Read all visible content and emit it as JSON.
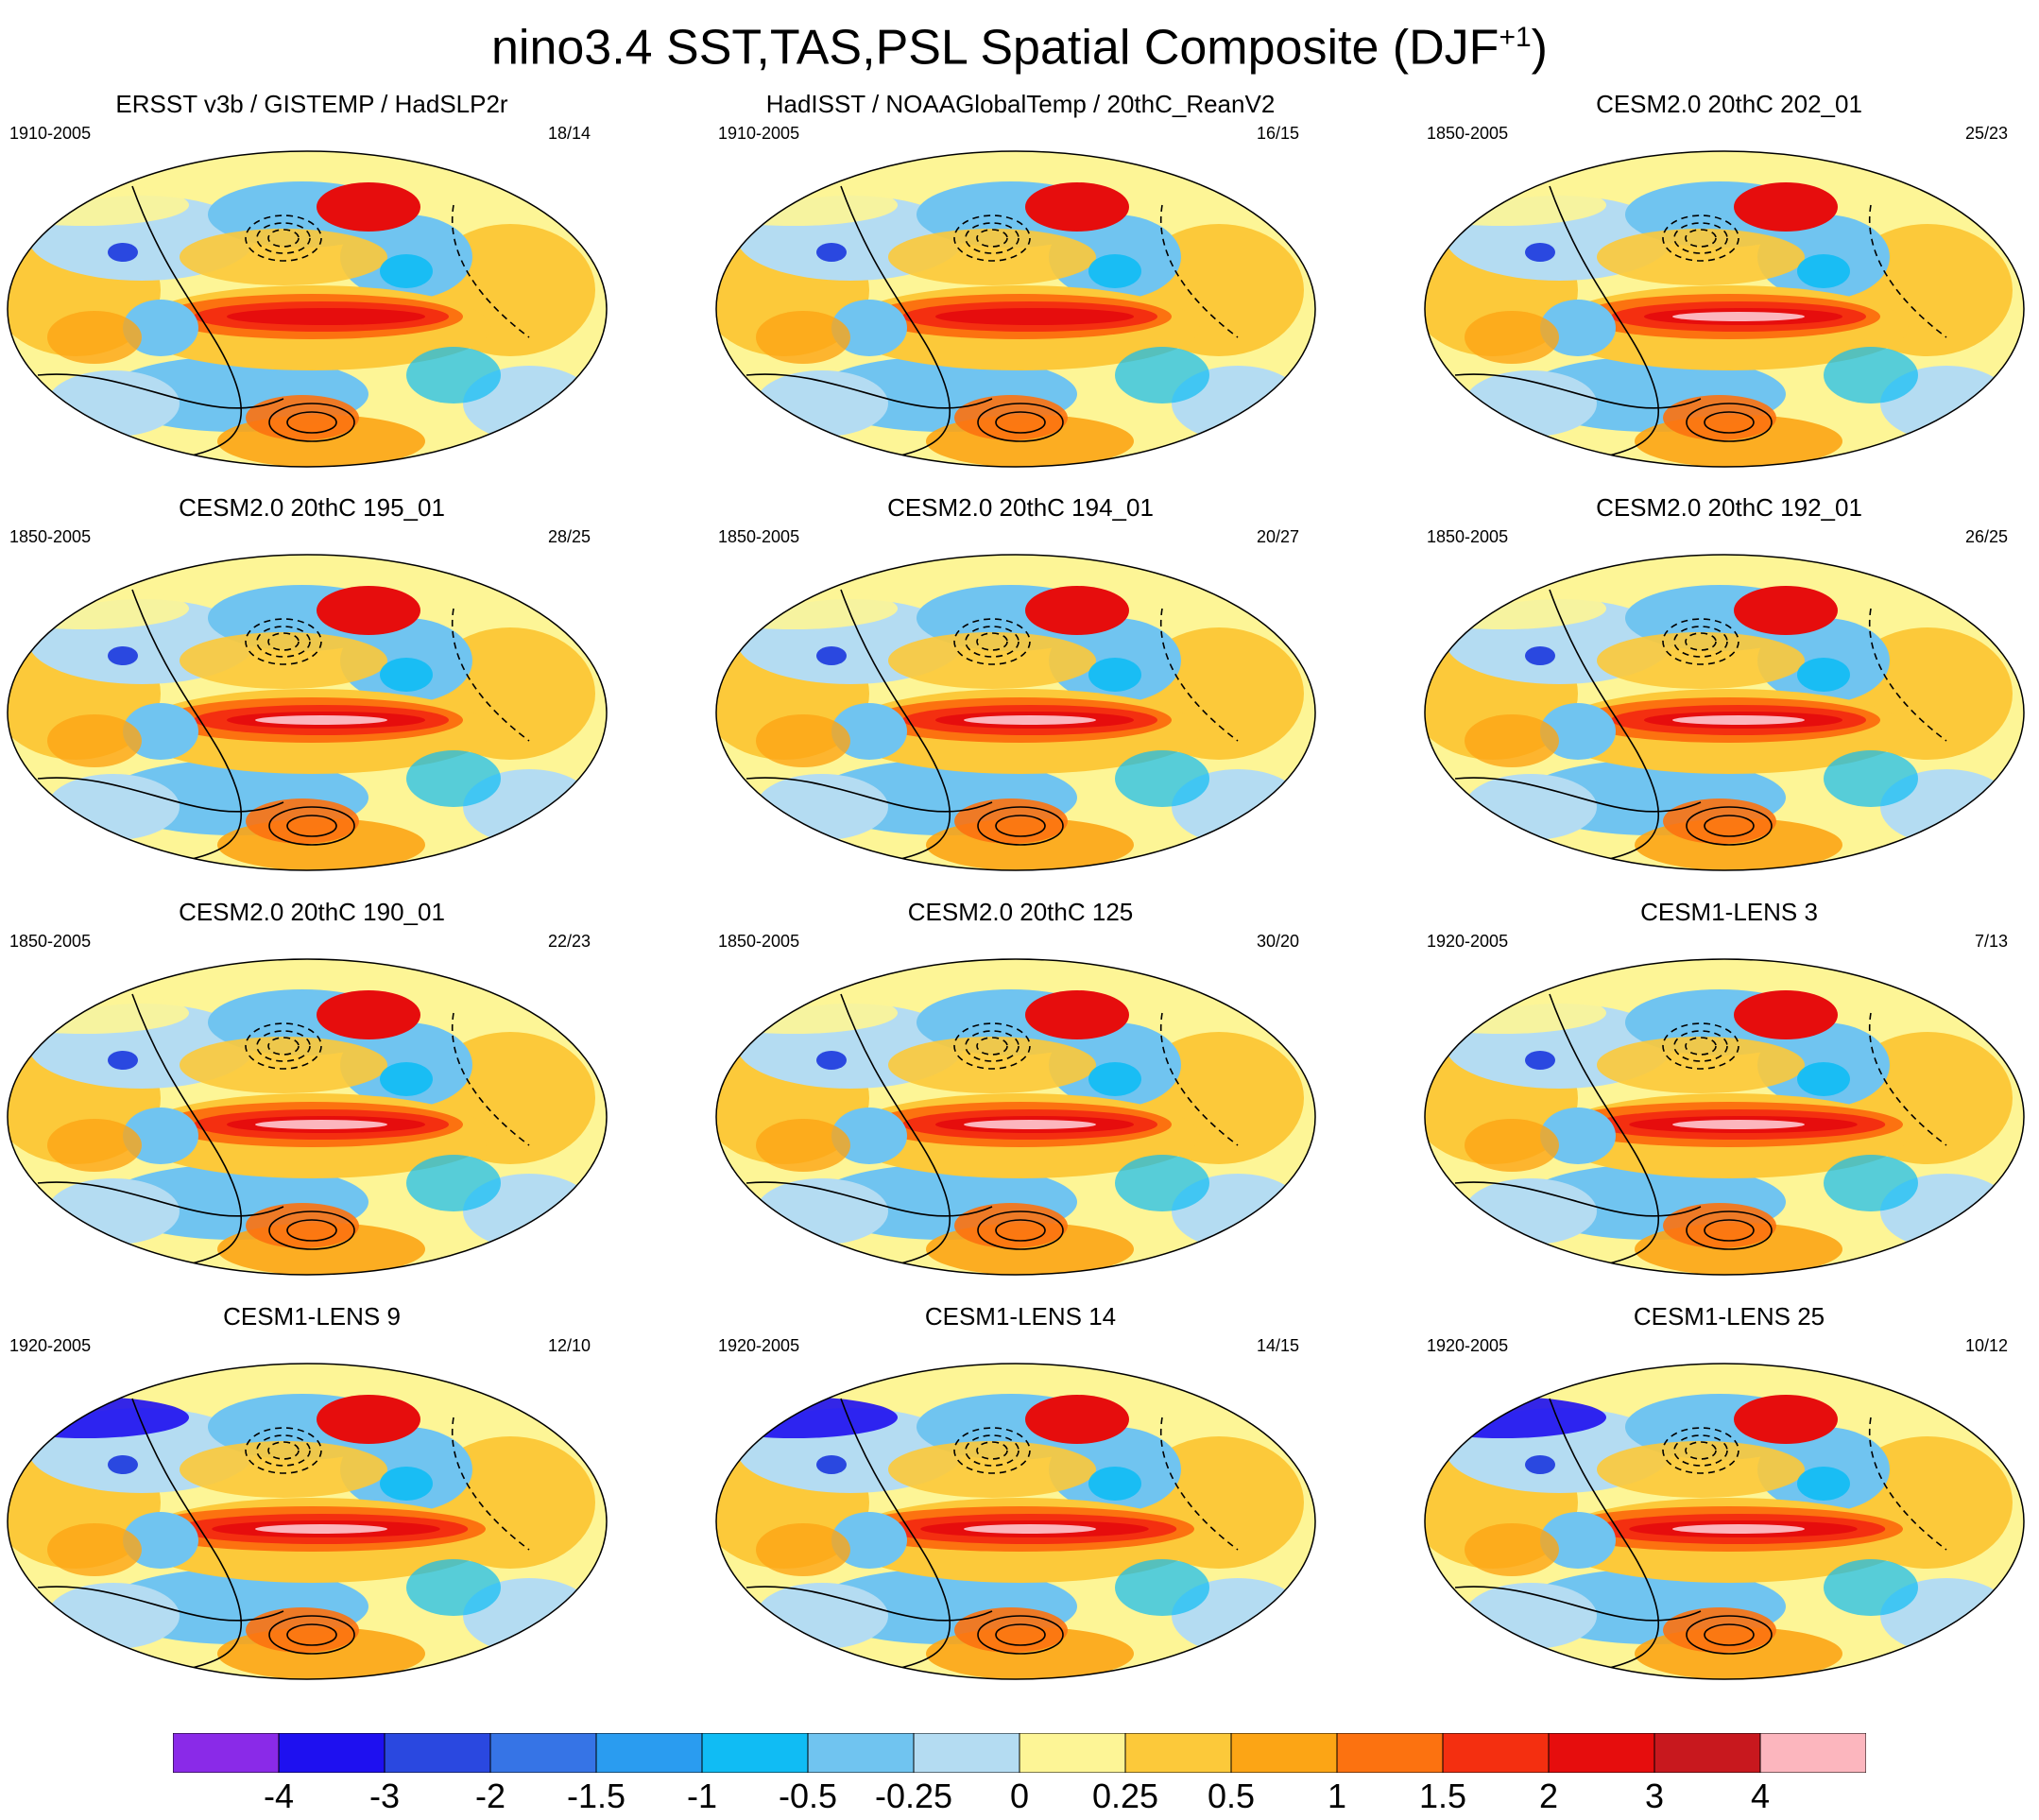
{
  "title": "nino3.4 SST,TAS,PSL Spatial Composite (DJF",
  "title_sup": "+1",
  "title_end": ")",
  "chart_data": {
    "type": "map_composite",
    "projection": "robinson",
    "fields": [
      "SST",
      "TAS",
      "PSL"
    ],
    "fill_variables": "SST/TAS anomaly",
    "contour_variable": "PSL anomaly",
    "contour_style": "solid = positive, dashed = negative",
    "panels": [
      {
        "title": "ERSST v3b / GISTEMP / HadSLP2r",
        "period": "1910-2005",
        "count": "18/14"
      },
      {
        "title": "HadISST / NOAAGlobalTemp / 20thC_ReanV2",
        "period": "1910-2005",
        "count": "16/15"
      },
      {
        "title": "CESM2.0 20thC 202_01",
        "period": "1850-2005",
        "count": "25/23"
      },
      {
        "title": "CESM2.0 20thC 195_01",
        "period": "1850-2005",
        "count": "28/25"
      },
      {
        "title": "CESM2.0 20thC 194_01",
        "period": "1850-2005",
        "count": "20/27"
      },
      {
        "title": "CESM2.0 20thC 192_01",
        "period": "1850-2005",
        "count": "26/25"
      },
      {
        "title": "CESM2.0 20thC 190_01",
        "period": "1850-2005",
        "count": "22/23"
      },
      {
        "title": "CESM2.0 20thC 125",
        "period": "1850-2005",
        "count": "30/20"
      },
      {
        "title": "CESM1-LENS 3",
        "period": "1920-2005",
        "count": "7/13"
      },
      {
        "title": "CESM1-LENS 9",
        "period": "1920-2005",
        "count": "12/10"
      },
      {
        "title": "CESM1-LENS 14",
        "period": "1920-2005",
        "count": "14/15"
      },
      {
        "title": "CESM1-LENS 25",
        "period": "1920-2005",
        "count": "10/12"
      }
    ],
    "colorbar": {
      "labels": [
        "-4",
        "-3",
        "-2",
        "-1.5",
        "-1",
        "-0.5",
        "-0.25",
        "0",
        "0.25",
        "0.5",
        "1",
        "1.5",
        "2",
        "3",
        "4"
      ],
      "colors": [
        "#8a2ae8",
        "#1e10f0",
        "#2a48e0",
        "#3674e6",
        "#2a9cf0",
        "#10bcf4",
        "#70c4f0",
        "#b4dcf2",
        "#fdf596",
        "#fcc93a",
        "#fca515",
        "#fc7210",
        "#f42f10",
        "#e60d0d",
        "#c8181e",
        "#fcb6be"
      ]
    }
  }
}
